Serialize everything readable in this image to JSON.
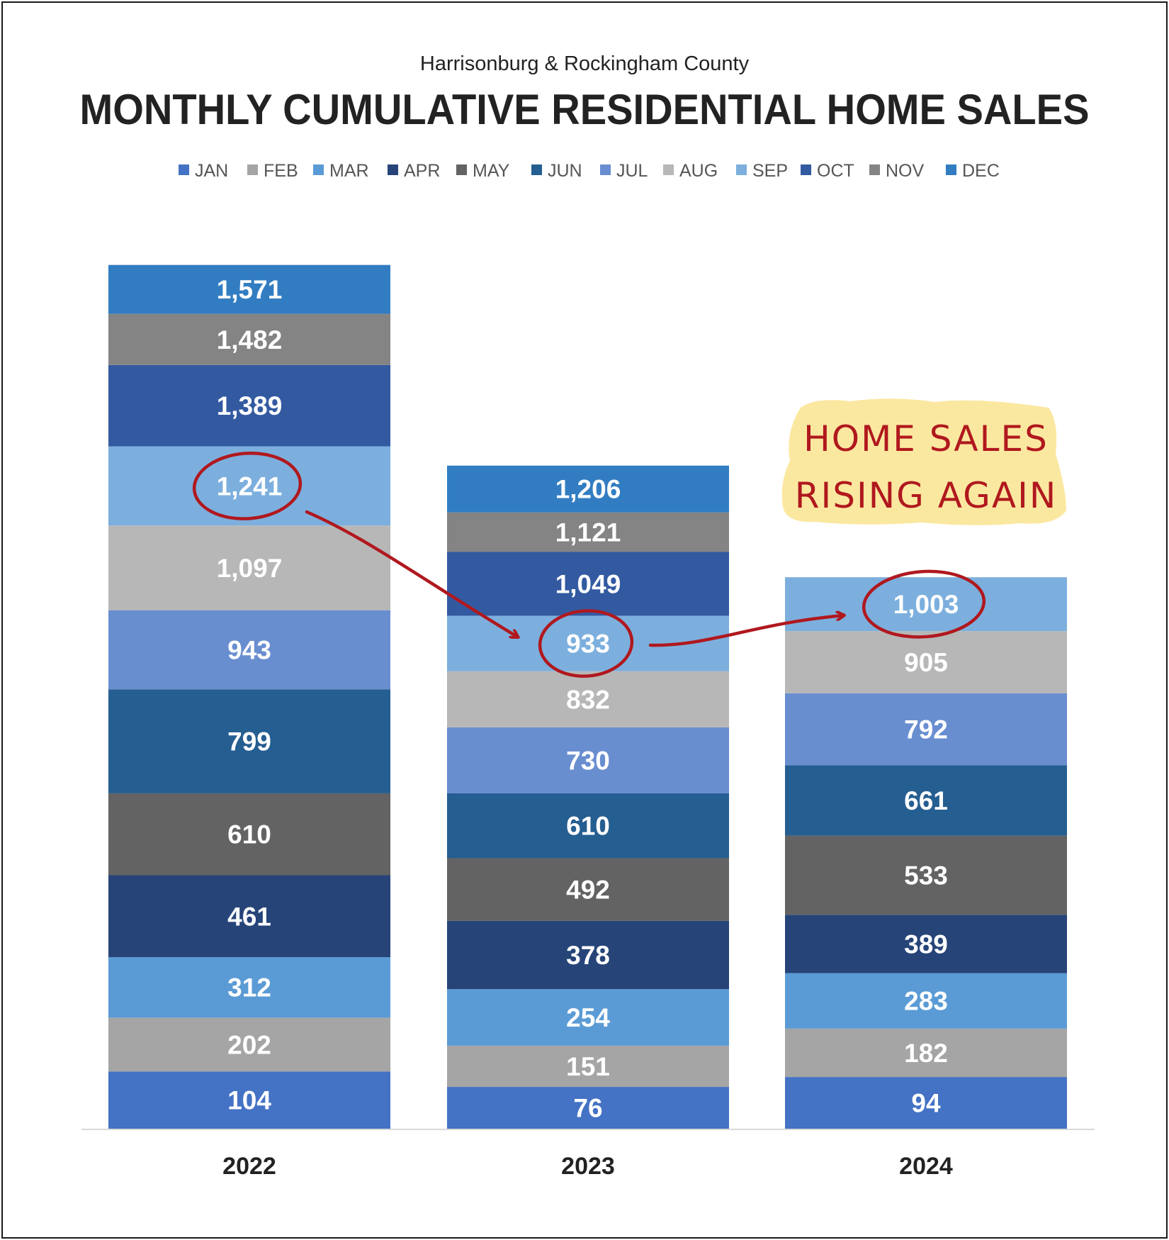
{
  "chart_data": {
    "type": "bar",
    "stacked": true,
    "subtitle": "Harrisonburg & Rockingham County",
    "title": "MONTHLY CUMULATIVE RESIDENTIAL HOME SALES",
    "legend_position": "top",
    "grid": false,
    "categories": [
      "2022",
      "2023",
      "2024"
    ],
    "series": [
      {
        "name": "JAN",
        "color": "#4472c4",
        "values": [
          104,
          76,
          94
        ]
      },
      {
        "name": "FEB",
        "color": "#a5a5a5",
        "values": [
          202,
          151,
          182
        ]
      },
      {
        "name": "MAR",
        "color": "#5b9bd5",
        "values": [
          312,
          254,
          283
        ]
      },
      {
        "name": "APR",
        "color": "#264478",
        "values": [
          461,
          378,
          389
        ]
      },
      {
        "name": "MAY",
        "color": "#636363",
        "values": [
          610,
          492,
          533
        ]
      },
      {
        "name": "JUN",
        "color": "#255e91",
        "values": [
          799,
          610,
          661
        ]
      },
      {
        "name": "JUL",
        "color": "#698ed0",
        "values": [
          943,
          730,
          792
        ]
      },
      {
        "name": "AUG",
        "color": "#b7b7b7",
        "values": [
          1097,
          832,
          905
        ]
      },
      {
        "name": "SEP",
        "color": "#7cafdd",
        "values": [
          1241,
          933,
          1003
        ]
      },
      {
        "name": "OCT",
        "color": "#335aa1",
        "values": [
          1389,
          1049,
          null
        ]
      },
      {
        "name": "NOV",
        "color": "#848484",
        "values": [
          1482,
          1121,
          null
        ]
      },
      {
        "name": "DEC",
        "color": "#327dc2",
        "values": [
          1571,
          1206,
          null
        ]
      }
    ],
    "data_labels": [
      [
        "104",
        "202",
        "312",
        "461",
        "610",
        "799",
        "943",
        "1,097",
        "1,241",
        "1,389",
        "1,482",
        "1,571"
      ],
      [
        "76",
        "151",
        "254",
        "378",
        "492",
        "610",
        "730",
        "832",
        "933",
        "1,049",
        "1,121",
        "1,206"
      ],
      [
        "94",
        "182",
        "283",
        "389",
        "533",
        "661",
        "792",
        "905",
        "1,003",
        null,
        null,
        null
      ]
    ],
    "annotations": {
      "note_lines": [
        "HOME SALES",
        "RISING AGAIN"
      ],
      "note_color": "#b0181e",
      "highlight_color": "#fbe8a0",
      "circled": [
        {
          "category": "2022",
          "series": "SEP"
        },
        {
          "category": "2023",
          "series": "SEP"
        },
        {
          "category": "2024",
          "series": "SEP"
        }
      ]
    }
  }
}
